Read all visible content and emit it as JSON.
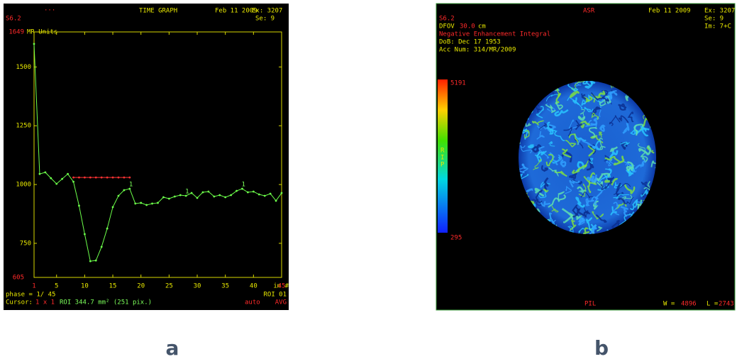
{
  "chart_data": {
    "type": "line",
    "title": "TIME GRAPH",
    "y_label": "MR Units",
    "x_label": "im #",
    "x": [
      1,
      2,
      3,
      4,
      5,
      6,
      7,
      8,
      9,
      10,
      11,
      12,
      13,
      14,
      15,
      16,
      17,
      18,
      19,
      20,
      21,
      22,
      23,
      24,
      25,
      26,
      27,
      28,
      29,
      30,
      31,
      32,
      33,
      34,
      35,
      36,
      37,
      38,
      39,
      40,
      41,
      42,
      43,
      44,
      45
    ],
    "series": [
      {
        "color": "#6cff4a",
        "values": [
          1598,
          1045,
          1052,
          1027,
          1003,
          1024,
          1045,
          1012,
          910,
          789,
          674,
          677,
          735,
          813,
          904,
          952,
          976,
          982,
          919,
          922,
          913,
          919,
          922,
          946,
          940,
          949,
          955,
          952,
          964,
          943,
          967,
          970,
          949,
          955,
          946,
          955,
          973,
          982,
          967,
          970,
          958,
          952,
          961,
          931,
          964
        ]
      },
      {
        "color": "#ff3333",
        "values": [
          null,
          null,
          null,
          null,
          null,
          null,
          null,
          1030,
          1030,
          1030,
          1030,
          1030,
          1030,
          1030,
          1030,
          1030,
          1030,
          1030,
          null,
          null,
          null,
          null,
          null,
          null,
          null,
          null,
          null,
          null,
          null,
          null,
          null,
          null,
          null,
          null,
          null,
          null,
          null,
          null,
          null,
          null,
          null,
          null,
          null,
          null,
          null
        ]
      }
    ],
    "annotations": [
      "1",
      "1",
      "1"
    ],
    "xlim": [
      1,
      45
    ],
    "xticks": [
      1,
      5,
      10,
      15,
      20,
      25,
      30,
      35,
      40,
      45
    ],
    "ylim": [
      605,
      1649
    ],
    "yticks": [
      605,
      750,
      1000,
      1250,
      1500,
      1649
    ]
  },
  "panel_a": {
    "dots": "...",
    "date": "Feb 11 2009",
    "exam": "Ex: 3207",
    "series": "Se: 9",
    "scanner": "S6.2",
    "phase": "phase =  1/ 45",
    "roi_id": "ROI 01",
    "cursor": "Cursor:",
    "cursor_size": "1 x 1",
    "roi": "ROI 344.7 mm² (251 pix.)",
    "mode": "auto",
    "stat": "AVG"
  },
  "panel_b": {
    "orientation": "ASR",
    "date": "Feb 11 2009",
    "exam": "Ex: 3207",
    "series": "Se: 9",
    "image": "Im: 7+C",
    "scanner": "S6.2",
    "dfov": "DFOV",
    "dfov_value": "30.0",
    "dfov_unit": "cm",
    "map_name": "Negative Enhancement Integral",
    "dob": "DoB: Dec 17 1953",
    "acc": "Acc Num: 314/MR/2009",
    "bar_max": "5191",
    "bar_min": "295",
    "bar_letters": [
      "R",
      "I",
      "P"
    ],
    "bottom": "PIL",
    "window": "W = ",
    "window_value": "4896",
    "level": "L =",
    "level_value": "2743"
  },
  "captions": [
    "a",
    "b"
  ]
}
